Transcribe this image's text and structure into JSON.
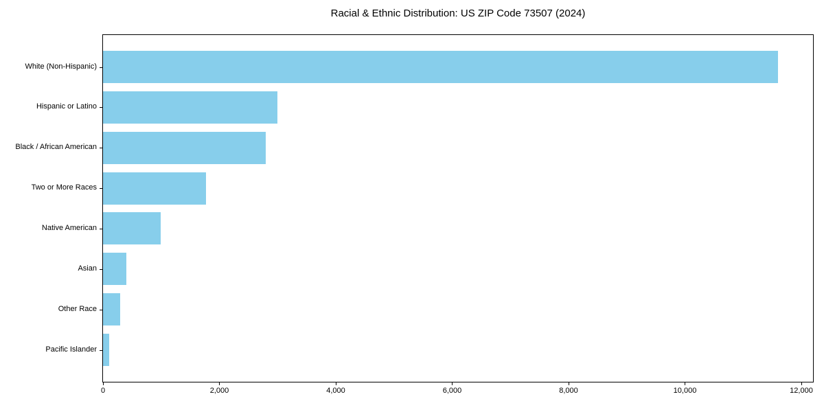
{
  "chart_data": {
    "type": "bar",
    "orientation": "horizontal",
    "title": "Racial & Ethnic Distribution: US ZIP Code 73507 (2024)",
    "categories": [
      "White (Non-Hispanic)",
      "Hispanic or Latino",
      "Black / African American",
      "Two or More Races",
      "Native American",
      "Asian",
      "Other Race",
      "Pacific Islander"
    ],
    "values": [
      11600,
      3000,
      2800,
      1770,
      990,
      400,
      295,
      105
    ],
    "bar_color": "#87CEEB",
    "xlabel": "",
    "ylabel": "",
    "x_ticks": [
      0,
      2000,
      4000,
      6000,
      8000,
      10000,
      12000
    ],
    "x_tick_labels": [
      "0",
      "2,000",
      "4,000",
      "6,000",
      "8,000",
      "10,000",
      "12,000"
    ],
    "xlim": [
      0,
      12200
    ],
    "grid": false,
    "legend": null,
    "background_color": "#ffffff",
    "axis_color": "#000000",
    "bar_height_fraction": 0.8
  }
}
